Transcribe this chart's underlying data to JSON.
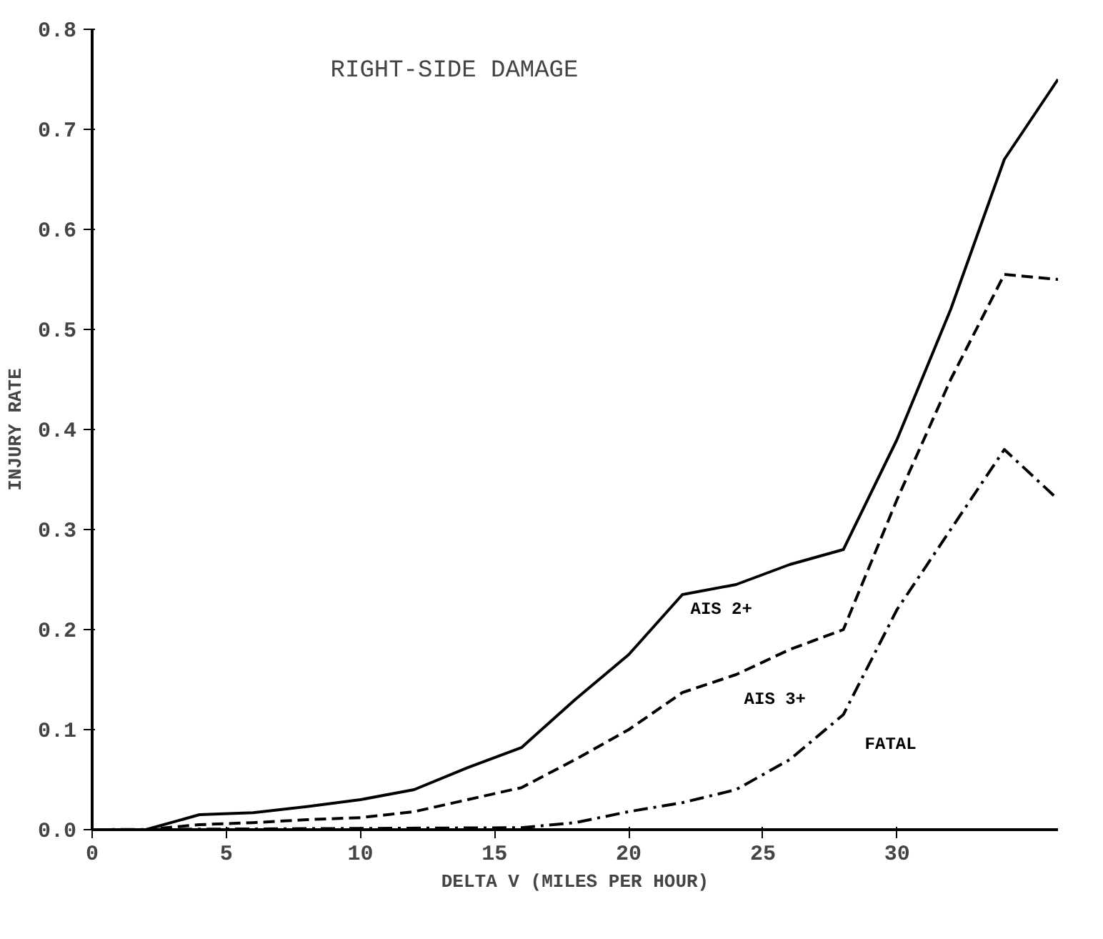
{
  "chart_data": {
    "type": "line",
    "title": "RIGHT-SIDE DAMAGE",
    "xlabel": "DELTA V (MILES PER HOUR)",
    "ylabel": "INJURY RATE",
    "xlim": [
      0,
      36
    ],
    "ylim": [
      0,
      0.8
    ],
    "xticks": [
      0,
      5,
      10,
      15,
      20,
      25,
      30
    ],
    "yticks": [
      {
        "value": 0,
        "label": "0.0"
      },
      0.1,
      0.2,
      0.3,
      0.4,
      0.5,
      0.6,
      0.7,
      0.8
    ],
    "grid": false,
    "marker": "none",
    "series": [
      {
        "name": "AIS 2+",
        "color": "#000000",
        "line_style": "solid",
        "x": [
          0,
          2,
          4,
          6,
          8,
          10,
          12,
          14,
          16,
          18,
          20,
          22,
          24,
          26,
          28,
          30,
          32,
          34,
          36
        ],
        "values": [
          0,
          0,
          0.015,
          0.017,
          0.023,
          0.03,
          0.04,
          0.062,
          0.082,
          0.13,
          0.175,
          0.235,
          0.245,
          0.265,
          0.28,
          0.39,
          0.52,
          0.67,
          0.75
        ]
      },
      {
        "name": "AIS 3+",
        "color": "#000000",
        "line_style": "dashed",
        "x": [
          0,
          2,
          4,
          6,
          8,
          10,
          12,
          14,
          16,
          18,
          20,
          22,
          24,
          26,
          28,
          30,
          32,
          34,
          36
        ],
        "values": [
          0,
          0,
          0.005,
          0.007,
          0.01,
          0.012,
          0.018,
          0.03,
          0.042,
          0.07,
          0.1,
          0.137,
          0.155,
          0.18,
          0.2,
          0.33,
          0.45,
          0.555,
          0.55
        ]
      },
      {
        "name": "FATAL",
        "color": "#000000",
        "line_style": "dotted",
        "x": [
          0,
          16,
          18,
          20,
          22,
          24,
          26,
          28,
          30,
          32,
          34,
          36
        ],
        "values": [
          0,
          0.002,
          0.007,
          0.018,
          0.027,
          0.04,
          0.07,
          0.115,
          0.22,
          0.3,
          0.38,
          0.33
        ]
      }
    ]
  }
}
